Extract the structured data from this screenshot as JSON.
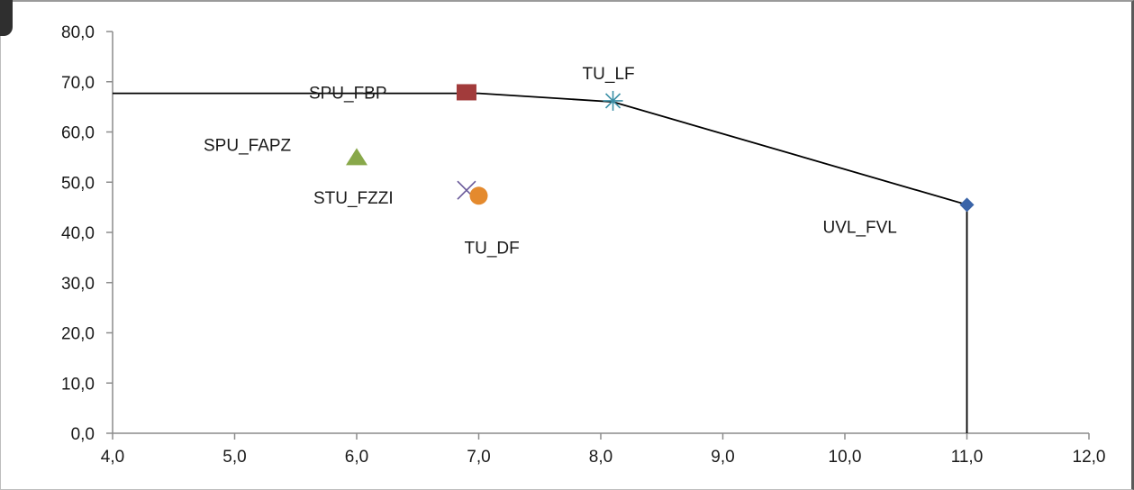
{
  "chart_data": {
    "type": "scatter",
    "title": "",
    "xlabel": "",
    "ylabel": "",
    "xlim": [
      4,
      12
    ],
    "ylim": [
      0,
      80
    ],
    "x_ticks": [
      4,
      5,
      6,
      7,
      8,
      9,
      10,
      11,
      12
    ],
    "y_ticks": [
      0,
      10,
      20,
      30,
      40,
      50,
      60,
      70,
      80
    ],
    "x_tick_labels": [
      "4,0",
      "5,0",
      "6,0",
      "7,0",
      "8,0",
      "9,0",
      "10,0",
      "11,0",
      "12,0"
    ],
    "y_tick_labels": [
      "0,0",
      "10,0",
      "20,0",
      "30,0",
      "40,0",
      "50,0",
      "60,0",
      "70,0",
      "80,0"
    ],
    "grid": false,
    "legend": "none",
    "frontier_line": {
      "color": "#000000",
      "points": [
        [
          4.0,
          67.7
        ],
        [
          7.0,
          67.7
        ],
        [
          8.1,
          66.0
        ],
        [
          11.0,
          45.5
        ],
        [
          11.0,
          0.0
        ]
      ]
    },
    "points": [
      {
        "label": "SPU_FBP",
        "x": 6.9,
        "y": 67.9,
        "marker": "square",
        "color": "#a23b3b"
      },
      {
        "label": "TU_LF",
        "x": 8.1,
        "y": 66.2,
        "marker": "star",
        "color": "#3b8fa6"
      },
      {
        "label": "SPU_FAPZ",
        "x": 6.0,
        "y": 55.0,
        "marker": "triangle",
        "color": "#88a84a"
      },
      {
        "label": "STU_FZZI",
        "x": 6.9,
        "y": 48.4,
        "marker": "x",
        "color": "#6a5a9a"
      },
      {
        "label": "TU_DF",
        "x": 7.0,
        "y": 47.3,
        "marker": "circle",
        "color": "#e48a2e"
      },
      {
        "label": "UVL_FVL",
        "x": 11.0,
        "y": 45.5,
        "marker": "diamond",
        "color": "#3a64a8"
      }
    ]
  }
}
